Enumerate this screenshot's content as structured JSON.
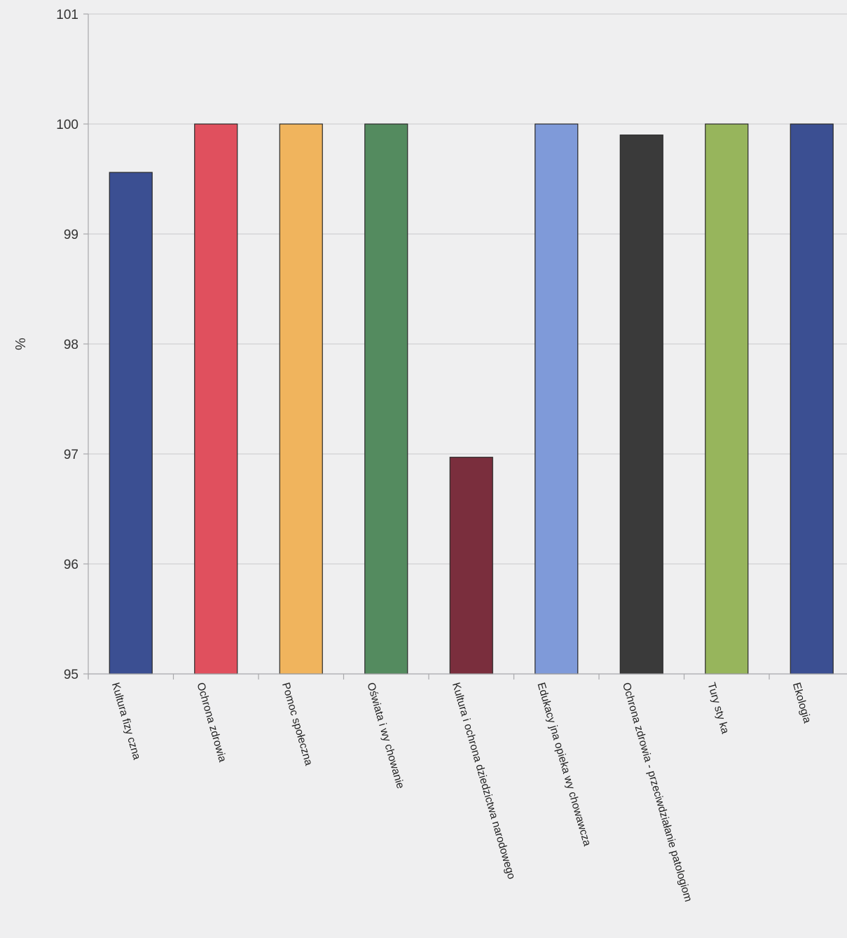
{
  "chart_data": {
    "type": "bar",
    "title": "",
    "xlabel": "",
    "ylabel": "%",
    "ylim": [
      95,
      101
    ],
    "yticks": [
      95,
      96,
      97,
      98,
      99,
      100,
      101
    ],
    "grid": true,
    "legend": "none",
    "categories": [
      "Kultura fizy czna",
      "Ochrona zdrowia",
      "Pomoc społeczna",
      "Oświata i wy chowanie",
      "Kultura i ochrona dziedzictwa narodowego",
      "Edukacy jna opieka wy chowawcza",
      "Ochrona zdrowia - przeciwdziałanie patologiom",
      "Tury sty ka",
      "Ekologia"
    ],
    "values": [
      99.56,
      100.0,
      100.0,
      100.0,
      96.97,
      100.0,
      99.9,
      100.0,
      100.0
    ],
    "colors": [
      "#3b4f92",
      "#e0505e",
      "#f0b45d",
      "#548b5f",
      "#7a2e3d",
      "#7f9ad9",
      "#3a3a3a",
      "#97b55c",
      "#3b4f92"
    ]
  }
}
